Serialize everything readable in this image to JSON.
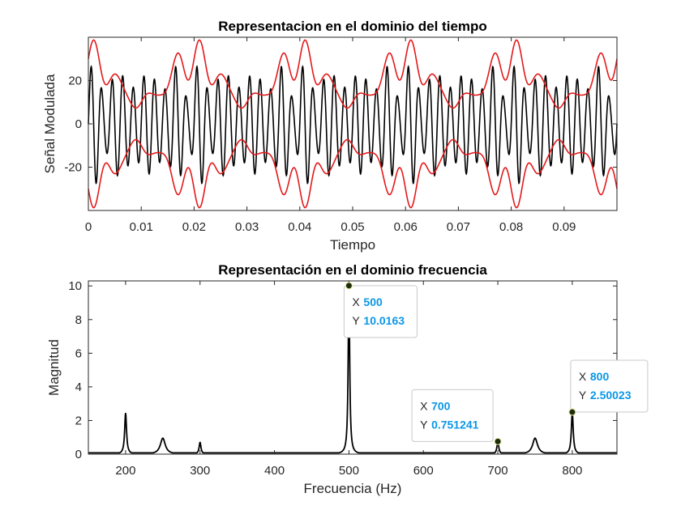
{
  "colors": {
    "signal": "#000000",
    "envelope": "#e31a1c",
    "spectrum": "#000000",
    "datatip_value": "#0b97e6",
    "datatip_marker": "#1f2d0f",
    "axis": "#262626"
  },
  "chart_data": [
    {
      "type": "line",
      "title": "Representacion en el dominio del tiempo",
      "xlabel": "Tiempo",
      "ylabel": "Señal Modulada",
      "xlim": [
        0,
        0.1
      ],
      "ylim": [
        -40,
        40
      ],
      "xticks": [
        0,
        0.01,
        0.02,
        0.03,
        0.04,
        0.05,
        0.06,
        0.07,
        0.08,
        0.09
      ],
      "xtick_labels": [
        "0",
        "0.01",
        "0.02",
        "0.03",
        "0.04",
        "0.05",
        "0.06",
        "0.07",
        "0.08",
        "0.09"
      ],
      "yticks": [
        -20,
        0,
        20
      ],
      "ytick_labels": [
        "-20",
        "0",
        "20"
      ],
      "series": [
        {
          "role": "modulated signal (black)",
          "carrier_hz": 500,
          "carrier_amplitude": 20,
          "message_components": [
            {
              "freq_hz": 200,
              "amplitude": 5
            },
            {
              "freq_hz": 250,
              "amplitude": 3
            },
            {
              "freq_hz": 300,
              "amplitude": 1.5
            }
          ]
        },
        {
          "role": "envelope (red, upper and lower)",
          "offset": 20,
          "components": [
            {
              "freq_hz": 50,
              "amplitude": 10
            },
            {
              "freq_hz": 200,
              "amplitude": 5
            },
            {
              "freq_hz": 250,
              "amplitude": 3
            },
            {
              "freq_hz": 300,
              "amplitude": 1.5
            }
          ]
        }
      ]
    },
    {
      "type": "line",
      "title": "Representación en el dominio frecuencia",
      "xlabel": "Frecuencia (Hz)",
      "ylabel": "Magnitud",
      "xlim": [
        150,
        860
      ],
      "ylim": [
        0,
        10.3
      ],
      "xticks": [
        200,
        300,
        400,
        500,
        600,
        700,
        800
      ],
      "xtick_labels": [
        "200",
        "300",
        "400",
        "500",
        "600",
        "700",
        "800"
      ],
      "yticks": [
        0,
        2,
        4,
        6,
        8,
        10
      ],
      "ytick_labels": [
        "0",
        "2",
        "4",
        "6",
        "8",
        "10"
      ],
      "baseline": 0.08,
      "peaks": [
        {
          "x": 200,
          "y": 2.45,
          "width_hz": 1.5
        },
        {
          "x": 250,
          "y": 0.95,
          "width_hz": 4
        },
        {
          "x": 300,
          "y": 0.7,
          "width_hz": 1.5
        },
        {
          "x": 500,
          "y": 10.0163,
          "width_hz": 1.2
        },
        {
          "x": 700,
          "y": 0.751241,
          "width_hz": 1.5
        },
        {
          "x": 750,
          "y": 0.95,
          "width_hz": 4
        },
        {
          "x": 800,
          "y": 2.50023,
          "width_hz": 1.5
        }
      ],
      "datatips": [
        {
          "x": 500,
          "y": 10.0163,
          "x_label": "X",
          "y_label": "Y",
          "x_text": "500",
          "y_text": "10.0163"
        },
        {
          "x": 700,
          "y": 0.751241,
          "x_label": "X",
          "y_label": "Y",
          "x_text": "700",
          "y_text": "0.751241"
        },
        {
          "x": 800,
          "y": 2.50023,
          "x_label": "X",
          "y_label": "Y",
          "x_text": "800",
          "y_text": "2.50023"
        }
      ]
    }
  ]
}
